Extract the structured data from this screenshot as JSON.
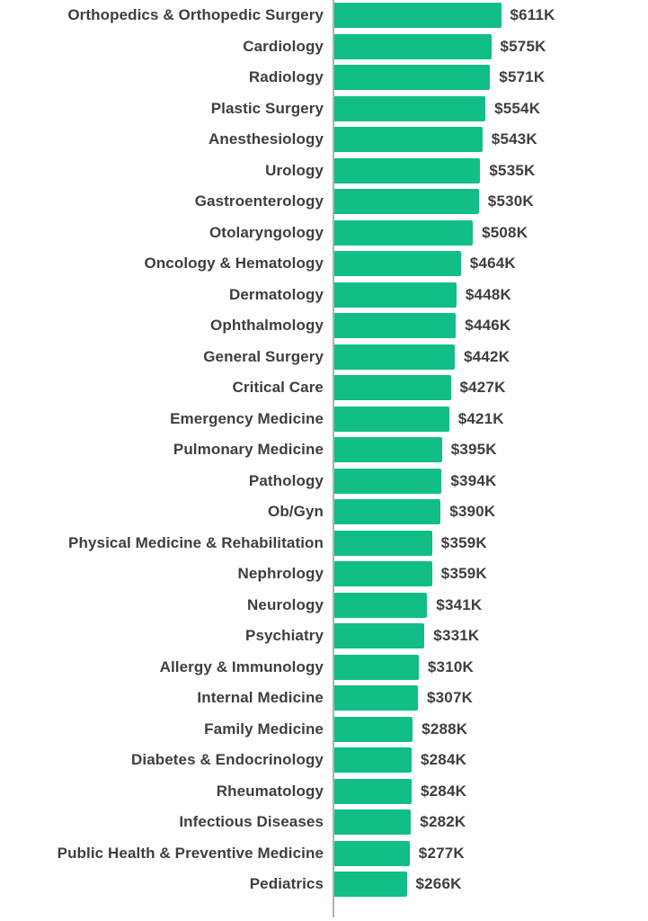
{
  "chart_data": {
    "type": "bar",
    "orientation": "horizontal",
    "title": "",
    "xlabel": "",
    "ylabel": "",
    "xlim": [
      0,
      611
    ],
    "grid": false,
    "legend": false,
    "unit": "USD thousands",
    "categories": [
      "Orthopedics & Orthopedic Surgery",
      "Cardiology",
      "Radiology",
      "Plastic Surgery",
      "Anesthesiology",
      "Urology",
      "Gastroenterology",
      "Otolaryngology",
      "Oncology & Hematology",
      "Dermatology",
      "Ophthalmology",
      "General Surgery",
      "Critical Care",
      "Emergency Medicine",
      "Pulmonary Medicine",
      "Pathology",
      "Ob/Gyn",
      "Physical Medicine & Rehabilitation",
      "Nephrology",
      "Neurology",
      "Psychiatry",
      "Allergy & Immunology",
      "Internal Medicine",
      "Family Medicine",
      "Diabetes & Endocrinology",
      "Rheumatology",
      "Infectious Diseases",
      "Public Health & Preventive Medicine",
      "Pediatrics"
    ],
    "values": [
      611,
      575,
      571,
      554,
      543,
      535,
      530,
      508,
      464,
      448,
      446,
      442,
      427,
      421,
      395,
      394,
      390,
      359,
      359,
      341,
      331,
      310,
      307,
      288,
      284,
      284,
      282,
      277,
      266
    ],
    "value_labels": [
      "$611K",
      "$575K",
      "$571K",
      "$554K",
      "$543K",
      "$535K",
      "$530K",
      "$508K",
      "$464K",
      "$448K",
      "$446K",
      "$442K",
      "$427K",
      "$421K",
      "$395K",
      "$394K",
      "$390K",
      "$359K",
      "$359K",
      "$341K",
      "$331K",
      "$310K",
      "$307K",
      "$288K",
      "$284K",
      "$284K",
      "$282K",
      "$277K",
      "$266K"
    ],
    "colors": {
      "bar": "#11be87",
      "axis": "#b0b0b0",
      "text": "#3e3e3e",
      "background": "#ffffff"
    }
  }
}
